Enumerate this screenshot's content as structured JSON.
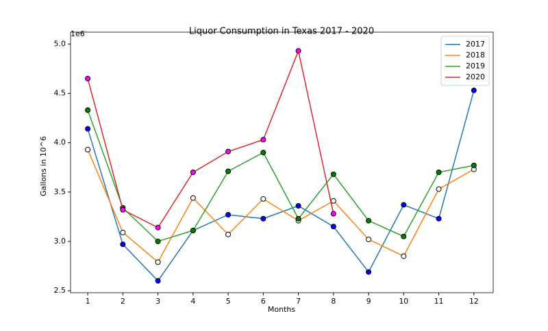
{
  "chart_data": {
    "type": "line",
    "title": "Liquor Consumption in Texas 2017 - 2020",
    "x_label": "Months",
    "y_label": "Gallons in 10^6",
    "y_offset_label": "1e6",
    "x": [
      1,
      2,
      3,
      4,
      5,
      6,
      7,
      8,
      9,
      10,
      11,
      12
    ],
    "xlim": [
      0.51,
      12.55
    ],
    "xticks": [
      1,
      2,
      3,
      4,
      5,
      6,
      7,
      8,
      9,
      10,
      11,
      12
    ],
    "ylim": [
      2.48,
      5.12
    ],
    "yticks": [
      {
        "value": 2.5,
        "label": "2.5"
      },
      {
        "value": 3,
        "label": "3.0"
      },
      {
        "value": 3.5,
        "label": "3.5"
      },
      {
        "value": 4,
        "label": "4.0"
      },
      {
        "value": 4.5,
        "label": "4.5"
      },
      {
        "value": 5,
        "label": "5.0"
      }
    ],
    "legend": "upper right",
    "grid": false,
    "series": [
      {
        "name": "2017",
        "color": "#1f77b4",
        "marker_color": "#0000ff",
        "values": [
          4.14,
          2.97,
          2.6,
          3.11,
          3.27,
          3.23,
          3.36,
          3.15,
          2.69,
          3.37,
          3.23,
          4.53
        ]
      },
      {
        "name": "2018",
        "color": "#ff7f0e",
        "marker_color": "#ffffff",
        "values": [
          3.93,
          3.09,
          2.79,
          3.44,
          3.07,
          3.43,
          3.21,
          3.41,
          3.02,
          2.85,
          3.53,
          3.73
        ]
      },
      {
        "name": "2019",
        "color": "#2ca02c",
        "marker_color": "#008000",
        "values": [
          4.33,
          3.34,
          3.0,
          3.11,
          3.71,
          3.9,
          3.23,
          3.68,
          3.21,
          3.05,
          3.7,
          3.77
        ]
      },
      {
        "name": "2020",
        "color": "#d62728",
        "marker_color": "#ff00ff",
        "values": [
          4.65,
          3.32,
          3.14,
          3.7,
          3.91,
          4.03,
          4.93,
          3.28,
          null,
          null,
          null,
          null
        ]
      }
    ]
  }
}
